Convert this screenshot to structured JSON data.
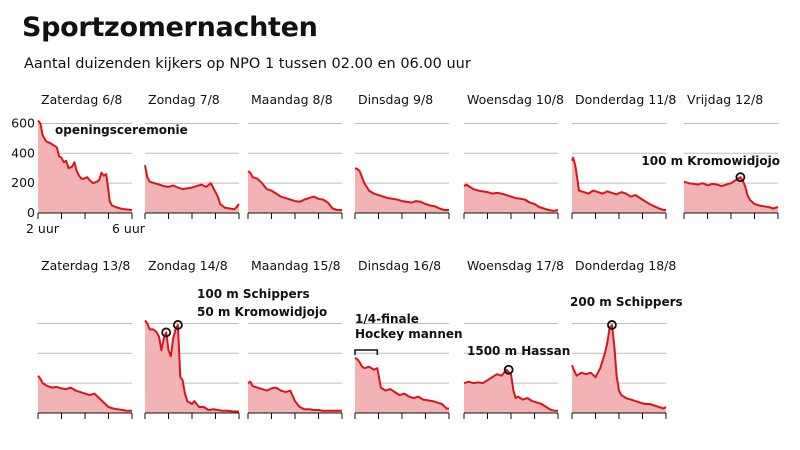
{
  "title": "Sportzomernachten",
  "subtitle": "Aantal duizenden kijkers op NPO 1 tussen 02.00 en 06.00 uur",
  "colors": {
    "line": "#d9151b",
    "fill": "#f2b3b4",
    "grid": "#bdbdbd",
    "axis": "#111111"
  },
  "chart_data": {
    "type": "area",
    "small_multiples": true,
    "ylim": [
      0,
      650
    ],
    "yticks": [
      0,
      200,
      400,
      600
    ],
    "xrange_hours": [
      2,
      6
    ],
    "xtick_labels": [
      "2 uur",
      "6 uur"
    ],
    "panels": [
      {
        "label": "Zaterdag 6/8",
        "x": [
          2.0,
          2.1,
          2.2,
          2.35,
          2.5,
          2.7,
          2.8,
          2.9,
          3.0,
          3.1,
          3.2,
          3.3,
          3.45,
          3.55,
          3.65,
          3.75,
          3.85,
          3.95,
          4.1,
          4.2,
          4.35,
          4.5,
          4.6,
          4.7,
          4.8,
          4.9,
          5.0,
          5.05,
          5.15,
          5.3,
          5.5,
          5.7,
          6.0
        ],
        "y": [
          620,
          600,
          520,
          480,
          470,
          450,
          440,
          380,
          370,
          340,
          350,
          300,
          310,
          340,
          280,
          250,
          230,
          230,
          240,
          220,
          200,
          210,
          220,
          270,
          250,
          260,
          150,
          80,
          50,
          40,
          30,
          25,
          20
        ],
        "annotations": [
          {
            "text": "openingsceremonie",
            "x": 2.7,
            "y": 520,
            "marker": false
          }
        ]
      },
      {
        "label": "Zondag 7/8",
        "x": [
          2.0,
          2.1,
          2.2,
          2.4,
          2.6,
          2.8,
          3.0,
          3.2,
          3.4,
          3.6,
          3.8,
          4.0,
          4.2,
          4.4,
          4.6,
          4.8,
          5.0,
          5.1,
          5.2,
          5.4,
          5.6,
          5.8,
          5.9,
          6.0
        ],
        "y": [
          320,
          240,
          210,
          200,
          190,
          180,
          175,
          185,
          170,
          160,
          165,
          170,
          180,
          190,
          175,
          200,
          140,
          110,
          60,
          35,
          30,
          25,
          40,
          60
        ],
        "annotations": []
      },
      {
        "label": "Maandag 8/8",
        "x": [
          2.0,
          2.1,
          2.2,
          2.4,
          2.6,
          2.8,
          3.0,
          3.2,
          3.4,
          3.6,
          3.8,
          4.0,
          4.2,
          4.4,
          4.6,
          4.8,
          5.0,
          5.2,
          5.4,
          5.6,
          5.8,
          6.0
        ],
        "y": [
          280,
          270,
          240,
          230,
          200,
          160,
          150,
          130,
          110,
          100,
          90,
          80,
          75,
          90,
          100,
          110,
          95,
          90,
          70,
          30,
          20,
          20
        ],
        "annotations": []
      },
      {
        "label": "Dinsdag 9/8",
        "x": [
          2.0,
          2.1,
          2.2,
          2.4,
          2.6,
          2.8,
          3.0,
          3.2,
          3.4,
          3.6,
          3.8,
          4.0,
          4.2,
          4.4,
          4.6,
          4.8,
          5.0,
          5.2,
          5.4,
          5.6,
          5.8,
          6.0
        ],
        "y": [
          300,
          295,
          280,
          200,
          150,
          130,
          120,
          110,
          100,
          95,
          90,
          80,
          75,
          70,
          80,
          75,
          60,
          50,
          45,
          30,
          20,
          20
        ],
        "annotations": []
      },
      {
        "label": "Woensdag 10/8",
        "x": [
          2.0,
          2.1,
          2.2,
          2.4,
          2.6,
          2.8,
          3.0,
          3.2,
          3.4,
          3.6,
          3.8,
          4.0,
          4.2,
          4.4,
          4.6,
          4.8,
          5.0,
          5.2,
          5.4,
          5.6,
          5.8,
          6.0
        ],
        "y": [
          180,
          190,
          180,
          160,
          150,
          145,
          140,
          130,
          135,
          130,
          120,
          110,
          100,
          95,
          90,
          70,
          60,
          40,
          30,
          20,
          15,
          20
        ],
        "annotations": []
      },
      {
        "label": "Donderdag 11/8",
        "x": [
          2.0,
          2.05,
          2.1,
          2.15,
          2.3,
          2.5,
          2.7,
          2.9,
          3.1,
          3.3,
          3.5,
          3.7,
          3.9,
          4.1,
          4.3,
          4.5,
          4.7,
          4.9,
          5.1,
          5.3,
          5.5,
          5.7,
          5.9,
          6.0
        ],
        "y": [
          350,
          370,
          340,
          310,
          150,
          140,
          130,
          150,
          140,
          130,
          145,
          135,
          125,
          140,
          130,
          110,
          120,
          100,
          80,
          60,
          45,
          30,
          20,
          20
        ],
        "annotations": []
      },
      {
        "label": "Vrijdag 12/8",
        "x": [
          2.0,
          2.2,
          2.4,
          2.6,
          2.8,
          3.0,
          3.2,
          3.4,
          3.6,
          3.8,
          4.0,
          4.2,
          4.4,
          4.5,
          4.6,
          4.7,
          4.8,
          4.9,
          5.0,
          5.2,
          5.4,
          5.6,
          5.8,
          6.0
        ],
        "y": [
          210,
          200,
          195,
          190,
          200,
          185,
          195,
          190,
          180,
          190,
          200,
          220,
          240,
          215,
          180,
          120,
          90,
          75,
          60,
          50,
          45,
          40,
          30,
          40
        ],
        "annotations": [
          {
            "text": "100 m Kromowidjojo",
            "x": 4.4,
            "y": 240,
            "marker": true
          }
        ]
      },
      {
        "label": "Zaterdag 13/8",
        "x": [
          2.0,
          2.1,
          2.2,
          2.4,
          2.6,
          2.8,
          3.0,
          3.2,
          3.4,
          3.6,
          3.8,
          4.0,
          4.2,
          4.4,
          4.6,
          4.8,
          5.0,
          5.2,
          5.4,
          5.6,
          5.8,
          6.0
        ],
        "y": [
          250,
          230,
          200,
          180,
          170,
          175,
          165,
          160,
          170,
          150,
          140,
          130,
          120,
          130,
          100,
          70,
          40,
          30,
          25,
          20,
          15,
          15
        ],
        "annotations": []
      },
      {
        "label": "Zondag 14/8",
        "x": [
          2.0,
          2.1,
          2.2,
          2.35,
          2.5,
          2.6,
          2.7,
          2.8,
          2.9,
          3.0,
          3.1,
          3.2,
          3.3,
          3.4,
          3.5,
          3.6,
          3.7,
          3.8,
          3.9,
          4.0,
          4.1,
          4.3,
          4.5,
          4.7,
          4.9,
          5.1,
          5.3,
          5.5,
          5.7,
          5.9,
          6.0
        ],
        "y": [
          620,
          600,
          560,
          560,
          540,
          510,
          420,
          500,
          540,
          420,
          380,
          500,
          560,
          590,
          240,
          220,
          130,
          80,
          70,
          60,
          80,
          40,
          40,
          20,
          25,
          20,
          15,
          15,
          12,
          10,
          10
        ],
        "annotations": [
          {
            "text": "50 m Kromowidjojo",
            "x": 2.9,
            "y": 540,
            "marker": true
          },
          {
            "text": "100 m Schippers",
            "x": 3.4,
            "y": 590,
            "marker": true
          }
        ]
      },
      {
        "label": "Maandag 15/8",
        "x": [
          2.0,
          2.1,
          2.2,
          2.4,
          2.6,
          2.8,
          3.0,
          3.2,
          3.4,
          3.6,
          3.8,
          4.0,
          4.2,
          4.4,
          4.6,
          4.8,
          5.0,
          5.2,
          5.4,
          5.6,
          5.8,
          6.0
        ],
        "y": [
          200,
          210,
          180,
          170,
          160,
          150,
          165,
          170,
          150,
          140,
          150,
          80,
          40,
          25,
          25,
          20,
          20,
          15,
          15,
          15,
          15,
          15
        ],
        "annotations": []
      },
      {
        "label": "Dinsdag 16/8",
        "x": [
          2.0,
          2.1,
          2.2,
          2.3,
          2.4,
          2.6,
          2.8,
          2.95,
          3.1,
          3.3,
          3.5,
          3.7,
          3.9,
          4.1,
          4.3,
          4.5,
          4.7,
          4.9,
          5.1,
          5.3,
          5.5,
          5.7,
          5.9,
          6.0
        ],
        "y": [
          370,
          360,
          340,
          310,
          300,
          310,
          290,
          300,
          170,
          150,
          160,
          140,
          120,
          130,
          110,
          100,
          110,
          90,
          85,
          80,
          70,
          60,
          30,
          30
        ],
        "annotations": [
          {
            "text": "1/4-finale\nHockey mannen",
            "x": 2.45,
            "y": 350,
            "marker": false,
            "bracket": [
              2.0,
              2.95
            ]
          }
        ]
      },
      {
        "label": "Woensdag 17/8",
        "x": [
          2.0,
          2.2,
          2.4,
          2.6,
          2.8,
          3.0,
          3.2,
          3.4,
          3.6,
          3.8,
          4.0,
          4.1,
          4.2,
          4.3,
          4.5,
          4.7,
          4.9,
          5.1,
          5.3,
          5.5,
          5.7,
          5.9,
          6.0
        ],
        "y": [
          200,
          210,
          200,
          205,
          200,
          220,
          240,
          260,
          250,
          290,
          260,
          150,
          100,
          110,
          90,
          100,
          80,
          70,
          60,
          40,
          20,
          15,
          15
        ],
        "annotations": [
          {
            "text": "1500 m Hassan",
            "x": 3.9,
            "y": 290,
            "marker": true
          }
        ]
      },
      {
        "label": "Donderdag 18/8",
        "x": [
          2.0,
          2.1,
          2.2,
          2.4,
          2.6,
          2.8,
          3.0,
          3.2,
          3.4,
          3.5,
          3.6,
          3.7,
          3.8,
          3.9,
          4.0,
          4.1,
          4.3,
          4.5,
          4.7,
          4.9,
          5.1,
          5.3,
          5.5,
          5.7,
          5.9,
          6.0
        ],
        "y": [
          320,
          280,
          250,
          270,
          260,
          270,
          240,
          300,
          400,
          470,
          570,
          590,
          450,
          250,
          150,
          120,
          100,
          90,
          80,
          70,
          60,
          60,
          50,
          40,
          30,
          40
        ],
        "annotations": [
          {
            "text": "200 m Schippers",
            "x": 3.7,
            "y": 590,
            "marker": true
          }
        ]
      }
    ]
  }
}
